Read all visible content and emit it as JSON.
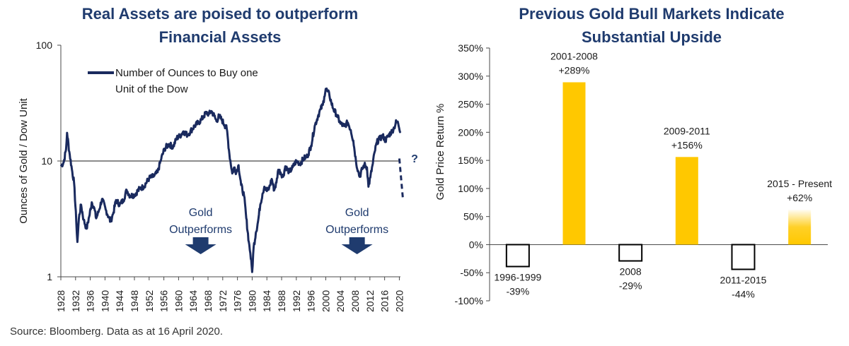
{
  "colors": {
    "title": "#1f3b6e",
    "series_line": "#1a2a5e",
    "axis": "#4a4a4a",
    "reference_line": "#8c8c8c",
    "bar_gold": "#ffc800",
    "bar_negative_fill": "#ffffff",
    "bar_negative_outline": "#000000"
  },
  "source_note": "Source: Bloomberg. Data as at 16 April 2020.",
  "chart_data": [
    {
      "type": "line",
      "title_lines": [
        "Real Assets are poised to outperform",
        "Financial Assets"
      ],
      "ylabel": "Ounces of Gold / Dow Unit",
      "yscale": "log",
      "ylim": [
        1,
        100
      ],
      "y_ticks": [
        "1",
        "10",
        "100"
      ],
      "x_range": [
        1928,
        2020.3
      ],
      "x_ticks": [
        "1928",
        "1932",
        "1936",
        "1940",
        "1944",
        "1948",
        "1952",
        "1956",
        "1960",
        "1964",
        "1968",
        "1972",
        "1976",
        "1980",
        "1984",
        "1988",
        "1992",
        "1996",
        "2000",
        "2004",
        "2008",
        "2012",
        "2016",
        "2020"
      ],
      "reference_line_y": 10,
      "legend": {
        "label_lines": [
          "Number of Ounces to Buy one",
          "Unit of the Dow"
        ],
        "position": "top-left"
      },
      "annotations": [
        {
          "lines": [
            "Gold",
            "Outperforms"
          ],
          "x": 1966,
          "arrow": "down"
        },
        {
          "lines": [
            "Gold",
            "Outperforms"
          ],
          "x": 2008.5,
          "arrow": "down"
        },
        {
          "text": "?",
          "x": 2023,
          "y": 10
        }
      ],
      "projection": {
        "style": "dashed",
        "x": [
          2020,
          2021
        ],
        "y": [
          10.5,
          4.6
        ]
      },
      "series": [
        {
          "name": "Number of Ounces to Buy one Unit of the Dow",
          "x": [
            1928,
            1928.8,
            1929.4,
            1929.7,
            1930.3,
            1931.0,
            1931.6,
            1932.2,
            1932.5,
            1932.9,
            1933.5,
            1934.2,
            1935.0,
            1935.7,
            1936.4,
            1937.0,
            1937.6,
            1938.2,
            1939.2,
            1940.2,
            1941.5,
            1942.3,
            1943.0,
            1944.0,
            1945.0,
            1945.9,
            1946.8,
            1948.0,
            1949.5,
            1950.5,
            1952.0,
            1953.3,
            1954.3,
            1955.3,
            1956.2,
            1957.4,
            1958.5,
            1959.5,
            1960.4,
            1961.3,
            1962.4,
            1963.2,
            1964.3,
            1965.4,
            1966.1,
            1966.9,
            1967.5,
            1968.3,
            1968.9,
            1969.7,
            1970.3,
            1971.0,
            1971.8,
            1972.5,
            1973.1,
            1973.8,
            1974.6,
            1975.1,
            1975.7,
            1976.3,
            1977.0,
            1977.8,
            1978.4,
            1979.1,
            1979.5,
            1980.0,
            1980.4,
            1981.0,
            1981.6,
            1982.2,
            1982.8,
            1983.3,
            1984.0,
            1984.6,
            1985.3,
            1986.0,
            1986.6,
            1987.1,
            1987.7,
            1988.4,
            1989.0,
            1990.1,
            1991.0,
            1992.0,
            1993.0,
            1994.0,
            1995.0,
            1996.0,
            1997.0,
            1998.0,
            1998.6,
            1999.2,
            1999.6,
            2000.0,
            2000.5,
            2001.0,
            2001.5,
            2002.1,
            2003.0,
            2004.0,
            2005.0,
            2006.0,
            2006.8,
            2007.5,
            2008.2,
            2008.8,
            2009.2,
            2009.9,
            2010.5,
            2011.2,
            2011.6,
            2012.1,
            2012.8,
            2013.3,
            2013.9,
            2014.6,
            2015.5,
            2016.2,
            2017.0,
            2018.0,
            2018.6,
            2019.2,
            2019.7,
            2020.3
          ],
          "y": [
            9.0,
            9.8,
            12.5,
            17.5,
            12.0,
            8.5,
            6.5,
            3.0,
            2.0,
            3.2,
            4.2,
            3.1,
            2.6,
            3.3,
            4.4,
            4.0,
            3.2,
            3.6,
            4.7,
            3.8,
            3.0,
            3.6,
            4.6,
            4.2,
            4.6,
            5.6,
            5.0,
            5.1,
            5.8,
            6.0,
            7.1,
            7.4,
            8.0,
            10.5,
            12.8,
            14.0,
            13.2,
            15.8,
            16.5,
            18.0,
            16.8,
            18.0,
            20.0,
            21.5,
            22.5,
            24.5,
            26.0,
            25.5,
            27.0,
            24.5,
            22.0,
            24.5,
            22.5,
            20.5,
            19.0,
            11.5,
            7.8,
            8.8,
            8.0,
            9.2,
            6.2,
            5.0,
            3.2,
            2.0,
            1.6,
            1.1,
            1.8,
            2.4,
            3.0,
            4.2,
            5.2,
            6.0,
            5.5,
            5.8,
            7.0,
            5.6,
            6.5,
            8.4,
            8.0,
            7.3,
            9.0,
            8.0,
            8.8,
            10.0,
            9.5,
            10.5,
            11.0,
            13.5,
            20.0,
            25.0,
            28.0,
            30.5,
            36.0,
            42.0,
            40.0,
            37.0,
            32.0,
            28.0,
            25.0,
            21.0,
            20.0,
            21.5,
            18.5,
            15.0,
            10.0,
            8.2,
            7.3,
            8.5,
            9.3,
            8.8,
            6.0,
            7.2,
            9.5,
            12.0,
            14.5,
            15.5,
            16.5,
            15.0,
            16.5,
            18.0,
            19.5,
            22.0,
            21.0,
            18.0
          ]
        }
      ]
    },
    {
      "type": "bar",
      "title_lines": [
        "Previous Gold Bull Markets Indicate",
        "Substantial Upside"
      ],
      "ylabel": "Gold Price Return %",
      "ylim": [
        -100,
        350
      ],
      "y_ticks": [
        "-100%",
        "-50%",
        "0%",
        "50%",
        "100%",
        "150%",
        "200%",
        "250%",
        "300%",
        "350%"
      ],
      "categories": [
        "1996-1999",
        "2001-2008",
        "2008",
        "2009-2011",
        "2011-2015",
        "2015 - Present"
      ],
      "values": [
        -39,
        289,
        -29,
        156,
        -44,
        62
      ],
      "value_labels": [
        "-39%",
        "+289%",
        "-29%",
        "+156%",
        "-44%",
        "+62%"
      ],
      "fade_last_bar": true
    }
  ]
}
